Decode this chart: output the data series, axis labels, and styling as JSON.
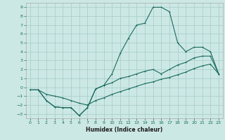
{
  "xlabel": "Humidex (Indice chaleur)",
  "bg_color": "#cce8e5",
  "grid_color": "#aacfcc",
  "line_color": "#1a6b5e",
  "xlim": [
    -0.5,
    23.5
  ],
  "ylim": [
    -3.5,
    9.5
  ],
  "xticks": [
    0,
    1,
    2,
    3,
    4,
    5,
    6,
    7,
    8,
    9,
    10,
    11,
    12,
    13,
    14,
    15,
    16,
    17,
    18,
    19,
    20,
    21,
    22,
    23
  ],
  "yticks": [
    -3,
    -2,
    -1,
    0,
    1,
    2,
    3,
    4,
    5,
    6,
    7,
    8,
    9
  ],
  "curve2_x": [
    0,
    1,
    2,
    3,
    4,
    5,
    6,
    7,
    8,
    9,
    10,
    11,
    12,
    13,
    14,
    15,
    16,
    17,
    18,
    19,
    20,
    21,
    22,
    23
  ],
  "curve2_y": [
    -0.3,
    -0.3,
    -1.5,
    -2.2,
    -2.3,
    -2.3,
    -3.2,
    -2.3,
    -0.2,
    0.2,
    1.5,
    3.8,
    5.5,
    7.0,
    7.2,
    9.0,
    9.0,
    8.5,
    5.0,
    4.0,
    4.5,
    4.5,
    4.0,
    1.5
  ],
  "curve1_x": [
    0,
    1,
    2,
    3,
    4,
    5,
    6,
    7,
    8,
    9,
    10,
    11,
    12,
    13,
    14,
    15,
    16,
    17,
    18,
    19,
    20,
    21,
    22,
    23
  ],
  "curve1_y": [
    -0.3,
    -0.3,
    -1.5,
    -2.2,
    -2.3,
    -2.3,
    -3.2,
    -2.3,
    -0.2,
    0.2,
    0.5,
    1.0,
    1.2,
    1.5,
    1.8,
    2.0,
    1.5,
    2.0,
    2.5,
    2.8,
    3.3,
    3.5,
    3.5,
    1.5
  ],
  "curve3_x": [
    0,
    1,
    2,
    3,
    4,
    5,
    6,
    7,
    8,
    9,
    10,
    11,
    12,
    13,
    14,
    15,
    16,
    17,
    18,
    19,
    20,
    21,
    22,
    23
  ],
  "curve3_y": [
    -0.3,
    -0.3,
    -0.8,
    -1.0,
    -1.2,
    -1.5,
    -1.8,
    -2.0,
    -1.5,
    -1.2,
    -0.8,
    -0.5,
    -0.2,
    0.1,
    0.4,
    0.6,
    0.9,
    1.1,
    1.4,
    1.7,
    2.1,
    2.4,
    2.6,
    1.5
  ]
}
